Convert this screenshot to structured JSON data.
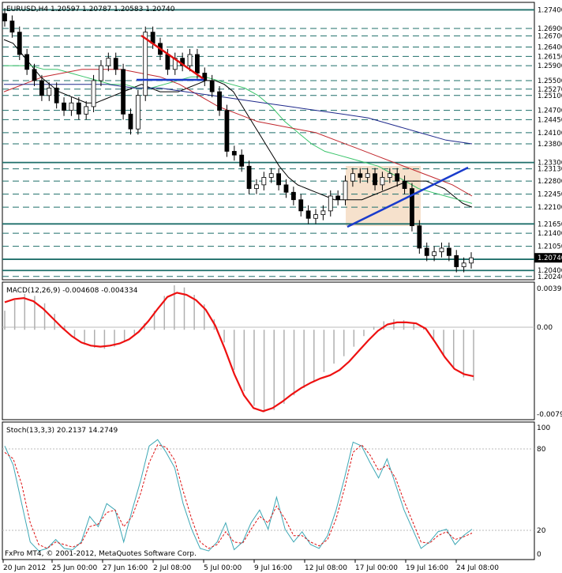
{
  "chart_data": [
    {
      "type": "line",
      "title": "EURUSD,H4  1.20597 1.20787 1.20583 1.20740",
      "symbol": "EURUSD",
      "timeframe": "H4",
      "ohlc_last": {
        "open": 1.20597,
        "high": 1.20787,
        "low": 1.20583,
        "close": 1.2074
      },
      "ylim": [
        1.2015,
        1.276
      ],
      "price_levels": [
        1.274,
        1.269,
        1.267,
        1.264,
        1.2615,
        1.259,
        1.255,
        1.2527,
        1.251,
        1.247,
        1.2445,
        1.241,
        1.238,
        1.233,
        1.2313,
        1.228,
        1.2245,
        1.221,
        1.2165,
        1.214,
        1.2105,
        1.207,
        1.204,
        1.2024
      ],
      "price_level_labels": [
        "1.27400",
        "1.26900",
        "1.26700",
        "1.26400",
        "1.26150",
        "1.25900",
        "1.25500",
        "1.25270",
        "1.25100",
        "1.24700",
        "1.24450",
        "1.24100",
        "1.23800",
        "1.23300",
        "1.23130",
        "1.22800",
        "1.22450",
        "1.22100",
        "1.21650",
        "1.21400",
        "1.21050",
        "1.20700",
        "1.20400",
        "1.20240"
      ],
      "highlighted_levels": [
        "1.27400",
        "1.23300",
        "1.21650",
        "1.20700",
        "1.20400"
      ],
      "current_price": "1.20740",
      "series": [
        {
          "name": "close",
          "values": [
            1.271,
            1.268,
            1.262,
            1.258,
            1.255,
            1.251,
            1.253,
            1.249,
            1.247,
            1.249,
            1.246,
            1.248,
            1.255,
            1.259,
            1.261,
            1.258,
            1.246,
            1.242,
            1.251,
            1.268,
            1.265,
            1.262,
            1.258,
            1.261,
            1.259,
            1.262,
            1.257,
            1.255,
            1.252,
            1.247,
            1.236,
            1.235,
            1.232,
            1.226,
            1.227,
            1.229,
            1.23,
            1.227,
            1.225,
            1.223,
            1.22,
            1.218,
            1.219,
            1.22,
            1.224,
            1.223,
            1.228,
            1.23,
            1.229,
            1.23,
            1.227,
            1.229,
            1.23,
            1.228,
            1.226,
            1.216,
            1.21,
            1.208,
            1.209,
            1.21,
            1.208,
            1.205,
            1.206,
            1.2074
          ]
        }
      ],
      "overlays": [
        {
          "name": "ma-black",
          "color": "#000000",
          "values": [
            1.266,
            1.265,
            1.262,
            1.259,
            1.256,
            1.254,
            1.252,
            1.251,
            1.25,
            1.249,
            1.249,
            1.25,
            1.251,
            1.252,
            1.253,
            1.254,
            1.253,
            1.252,
            1.252,
            1.252,
            1.253,
            1.254,
            1.255,
            1.255,
            1.254,
            1.252,
            1.248,
            1.244,
            1.24,
            1.236,
            1.232,
            1.229,
            1.227,
            1.226,
            1.225,
            1.224,
            1.223,
            1.223,
            1.223,
            1.223,
            1.224,
            1.225,
            1.226,
            1.227,
            1.228,
            1.228,
            1.228,
            1.227,
            1.226,
            1.224,
            1.222,
            1.221
          ]
        },
        {
          "name": "ma-green",
          "color": "#39c46a",
          "values": [
            1.259,
            1.259,
            1.259,
            1.258,
            1.258,
            1.257,
            1.256,
            1.255,
            1.254,
            1.254,
            1.253,
            1.253,
            1.254,
            1.255,
            1.256,
            1.256,
            1.255,
            1.254,
            1.253,
            1.251,
            1.248,
            1.244,
            1.241,
            1.238,
            1.236,
            1.235,
            1.234,
            1.233,
            1.232,
            1.23,
            1.228,
            1.226,
            1.225,
            1.224,
            1.223,
            1.222
          ]
        },
        {
          "name": "ma-red",
          "color": "#c1272d",
          "values": [
            1.252,
            1.254,
            1.256,
            1.257,
            1.258,
            1.258,
            1.258,
            1.257,
            1.256,
            1.254,
            1.251,
            1.248,
            1.246,
            1.244,
            1.243,
            1.242,
            1.241,
            1.239,
            1.237,
            1.235,
            1.233,
            1.231,
            1.229,
            1.227,
            1.224
          ]
        },
        {
          "name": "ma-blue",
          "color": "#1f2a8c",
          "values": [
            1.254,
            1.254,
            1.254,
            1.254,
            1.254,
            1.253,
            1.253,
            1.252,
            1.251,
            1.25,
            1.249,
            1.248,
            1.247,
            1.246,
            1.245,
            1.243,
            1.241,
            1.239,
            1.238
          ]
        }
      ],
      "x_tick_labels": [
        "20 Jun 2012",
        "25 Jun 00:00",
        "27 Jun 16:00",
        "2 Jul 08:00",
        "5 Jul 00:00",
        "9 Jul 16:00",
        "12 Jul 08:00",
        "17 Jul 00:00",
        "19 Jul 16:00",
        "24 Jul 08:00"
      ]
    },
    {
      "type": "line",
      "title": "MACD(12,26,9) -0.004608 -0.004334",
      "ylim": [
        -0.0085,
        0.0045
      ],
      "tick_labels": [
        "0.00392",
        "0.00",
        "-0.00791"
      ],
      "series": [
        {
          "name": "histogram",
          "values": [
            0.0018,
            0.0028,
            0.0034,
            0.0032,
            0.0025,
            0.0015,
            0.0004,
            -0.0007,
            -0.0014,
            -0.0017,
            -0.0018,
            -0.0016,
            -0.0011,
            -0.0004,
            0.0006,
            0.0018,
            0.0032,
            0.0042,
            0.004,
            0.0033,
            0.0024,
            0.001,
            -0.0012,
            -0.0038,
            -0.0058,
            -0.0072,
            -0.0078,
            -0.0076,
            -0.007,
            -0.0062,
            -0.0055,
            -0.0048,
            -0.004,
            -0.0032,
            -0.0025,
            -0.0016,
            -0.0006,
            0.0003,
            0.0008,
            0.001,
            0.0009,
            0.0006,
            0.0002,
            -0.001,
            -0.0025,
            -0.0037,
            -0.0045,
            -0.0048
          ]
        },
        {
          "name": "signal",
          "color": "#ee1111",
          "values": [
            0.0026,
            0.0029,
            0.003,
            0.0027,
            0.002,
            0.0011,
            0.0002,
            -0.0006,
            -0.0012,
            -0.0015,
            -0.0016,
            -0.0015,
            -0.0013,
            -0.0009,
            -0.0002,
            0.0008,
            0.002,
            0.0031,
            0.0035,
            0.0033,
            0.0028,
            0.0019,
            0.0004,
            -0.0018,
            -0.0042,
            -0.0062,
            -0.0074,
            -0.0077,
            -0.0074,
            -0.0068,
            -0.0061,
            -0.0055,
            -0.005,
            -0.0046,
            -0.0043,
            -0.0038,
            -0.003,
            -0.002,
            -0.001,
            -0.0001,
            0.0005,
            0.0007,
            0.0007,
            0.0006,
            0.0001,
            -0.0012,
            -0.0026,
            -0.0037,
            -0.0042,
            -0.0044
          ]
        }
      ]
    },
    {
      "type": "line",
      "title": "Stoch(13,3,3) 20.2137 14.2749",
      "ylim": [
        0,
        100
      ],
      "tick_labels": [
        "100",
        "80",
        "20",
        "0"
      ],
      "series": [
        {
          "name": "main",
          "color": "#3ca7b5",
          "values": [
            85,
            70,
            40,
            10,
            3,
            5,
            12,
            5,
            4,
            10,
            30,
            22,
            40,
            35,
            10,
            35,
            58,
            85,
            90,
            80,
            68,
            40,
            20,
            5,
            3,
            10,
            25,
            4,
            10,
            25,
            35,
            20,
            45,
            20,
            10,
            18,
            8,
            5,
            15,
            35,
            60,
            88,
            85,
            72,
            60,
            75,
            55,
            35,
            20,
            5,
            10,
            18,
            20,
            8,
            15,
            20
          ]
        },
        {
          "name": "signal",
          "color": "#dd1111",
          "values": [
            80,
            75,
            55,
            25,
            8,
            5,
            10,
            8,
            6,
            9,
            22,
            24,
            33,
            35,
            22,
            30,
            48,
            72,
            86,
            84,
            74,
            50,
            28,
            10,
            5,
            8,
            18,
            10,
            9,
            20,
            30,
            25,
            38,
            28,
            15,
            15,
            10,
            7,
            12,
            28,
            52,
            80,
            86,
            78,
            66,
            70,
            60,
            42,
            26,
            10,
            9,
            15,
            18,
            12,
            14,
            17
          ]
        }
      ]
    }
  ],
  "footer": {
    "copyright": "FxPro MT4, © 2001-2012, MetaQuotes Software Corp."
  }
}
